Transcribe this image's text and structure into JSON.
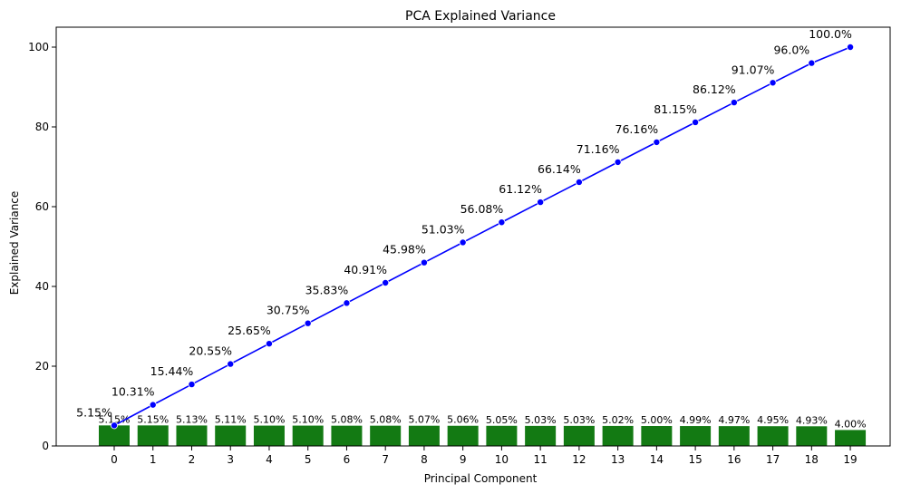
{
  "chart_data": {
    "type": "bar",
    "title": "PCA Explained Variance",
    "xlabel": "Principal Component",
    "ylabel": "Explained Variance",
    "ylim": [
      0,
      105
    ],
    "yticks": [
      0,
      20,
      40,
      60,
      80,
      100
    ],
    "grid": false,
    "categories": [
      "0",
      "1",
      "2",
      "3",
      "4",
      "5",
      "6",
      "7",
      "8",
      "9",
      "10",
      "11",
      "12",
      "13",
      "14",
      "15",
      "16",
      "17",
      "18",
      "19"
    ],
    "series": [
      {
        "type": "bar",
        "color": "#137a13",
        "values": [
          5.15,
          5.15,
          5.13,
          5.11,
          5.1,
          5.1,
          5.08,
          5.08,
          5.07,
          5.06,
          5.05,
          5.03,
          5.03,
          5.02,
          5.0,
          4.99,
          4.97,
          4.95,
          4.93,
          4.0
        ],
        "labels": [
          "5.15%",
          "5.15%",
          "5.13%",
          "5.11%",
          "5.10%",
          "5.10%",
          "5.08%",
          "5.08%",
          "5.07%",
          "5.06%",
          "5.05%",
          "5.03%",
          "5.03%",
          "5.02%",
          "5.00%",
          "4.99%",
          "4.97%",
          "4.95%",
          "4.93%",
          "4.00%"
        ]
      },
      {
        "type": "line",
        "color": "#0000ff",
        "marker": "circle",
        "values": [
          5.15,
          10.31,
          15.44,
          20.55,
          25.65,
          30.75,
          35.83,
          40.91,
          45.98,
          51.03,
          56.08,
          61.12,
          66.14,
          71.16,
          76.16,
          81.15,
          86.12,
          91.07,
          96.0,
          100.0
        ],
        "labels": [
          "5.15%",
          "10.31%",
          "15.44%",
          "20.55%",
          "25.65%",
          "30.75%",
          "35.83%",
          "40.91%",
          "45.98%",
          "51.03%",
          "56.08%",
          "61.12%",
          "66.14%",
          "71.16%",
          "76.16%",
          "81.15%",
          "86.12%",
          "91.07%",
          "96.0%",
          "100.0%"
        ]
      }
    ]
  }
}
